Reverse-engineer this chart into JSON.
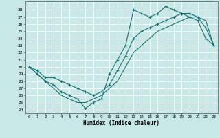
{
  "xlabel": "Humidex (Indice chaleur)",
  "background_color": "#c8e8e8",
  "grid_color": "#ffffff",
  "line_color": "#1a7070",
  "x": [
    0,
    1,
    2,
    3,
    4,
    5,
    6,
    7,
    8,
    9,
    10,
    11,
    12,
    13,
    14,
    15,
    16,
    17,
    18,
    19,
    20,
    21,
    22,
    23
  ],
  "line1": [
    30,
    29,
    28,
    27.5,
    26.5,
    26,
    25.5,
    24.2,
    25,
    25.5,
    29,
    31,
    33,
    38,
    37.5,
    37,
    37.5,
    38.5,
    38,
    37.5,
    37,
    36.5,
    34,
    33
  ],
  "line2": [
    30,
    29.5,
    28.5,
    28.5,
    28,
    27.5,
    27,
    26.5,
    26,
    26.5,
    27.5,
    29.5,
    31.5,
    34,
    35,
    35.5,
    36,
    36.5,
    37,
    37.5,
    37.5,
    37,
    35.5,
    33
  ],
  "line3": [
    30,
    29,
    28,
    27,
    26,
    25.5,
    25,
    25,
    25.5,
    26,
    27,
    28,
    30,
    32,
    33,
    34,
    35,
    35.5,
    36,
    36.5,
    37,
    37,
    36.5,
    33
  ],
  "xlim": [
    -0.5,
    23.5
  ],
  "ylim": [
    23.5,
    39.2
  ],
  "yticks": [
    24,
    25,
    26,
    27,
    28,
    29,
    30,
    31,
    32,
    33,
    34,
    35,
    36,
    37,
    38
  ],
  "xticks": [
    0,
    1,
    2,
    3,
    4,
    5,
    6,
    7,
    8,
    9,
    10,
    11,
    12,
    13,
    14,
    15,
    16,
    17,
    18,
    19,
    20,
    21,
    22,
    23
  ]
}
